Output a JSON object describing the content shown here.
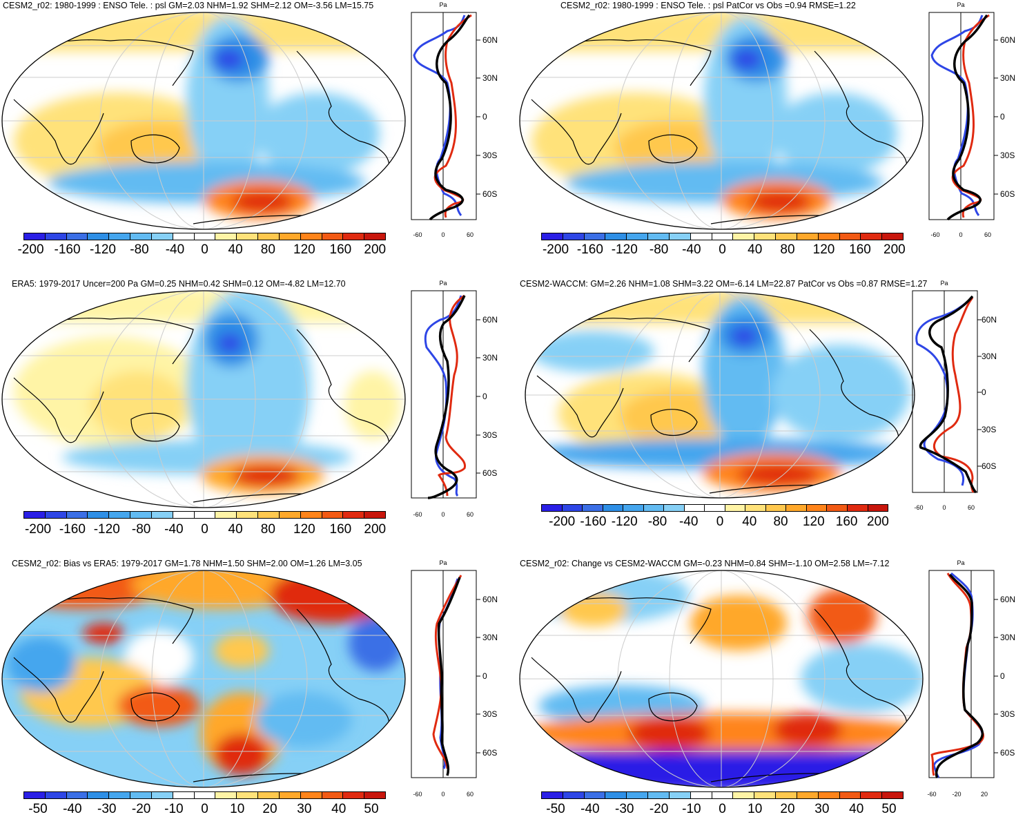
{
  "colors": [
    "#2a1fe6",
    "#2e46e6",
    "#3b6fe6",
    "#2e8fe6",
    "#45a6ee",
    "#62bbf2",
    "#86d0f6",
    "#ffffff",
    "#ffffff",
    "#fff4a6",
    "#ffe27a",
    "#ffc84e",
    "#ffa82a",
    "#ff841a",
    "#f25a14",
    "#e02a10",
    "#c8160c"
  ],
  "panels": [
    {
      "title": "CESM2_r02: 1980-1999 : ENSO Tele. : psl GM=2.03 NHM=1.92 SHM=2.12 OM=-3.56 LM=15.75",
      "cb_labels": [
        "-200",
        "-160",
        "-120",
        "-80",
        "-40",
        "0",
        "40",
        "80",
        "120",
        "160",
        "200"
      ],
      "unit": "Pa",
      "lat_labels": [
        "60N",
        "30N",
        "0",
        "30S",
        "60S"
      ],
      "x_ticks": [
        "-60",
        "0",
        "60"
      ]
    },
    {
      "title": "CESM2_r02: 1980-1999 : ENSO Tele. : psl PatCor vs Obs =0.94 RMSE=1.22",
      "cb_labels": [
        "-200",
        "-160",
        "-120",
        "-80",
        "-40",
        "0",
        "40",
        "80",
        "120",
        "160",
        "200"
      ],
      "unit": "Pa",
      "lat_labels": [
        "60N",
        "30N",
        "0",
        "30S",
        "60S"
      ],
      "x_ticks": [
        "-60",
        "0",
        "60"
      ]
    },
    {
      "title": "ERA5: 1979-2017 Uncer=200 Pa GM=0.25 NHM=0.42 SHM=0.12 OM=-4.82 LM=12.70",
      "cb_labels": [
        "-200",
        "-160",
        "-120",
        "-80",
        "-40",
        "0",
        "40",
        "80",
        "120",
        "160",
        "200"
      ],
      "unit": "Pa",
      "lat_labels": [
        "60N",
        "30N",
        "0",
        "30S",
        "60S"
      ],
      "x_ticks": [
        "-60",
        "0",
        "60"
      ]
    },
    {
      "title": "CESM2-WACCM: GM=2.26 NHM=1.08 SHM=3.22 OM=-6.14 LM=22.87 PatCor vs Obs =0.87 RMSE=1.27",
      "cb_labels": [
        "-200",
        "-160",
        "-120",
        "-80",
        "-40",
        "0",
        "40",
        "80",
        "120",
        "160",
        "200"
      ],
      "unit": "Pa",
      "lat_labels": [
        "60N",
        "30N",
        "0",
        "30S",
        "60S"
      ],
      "x_ticks": [
        "-60",
        "0",
        "60"
      ]
    },
    {
      "title": "CESM2_r02: Bias vs ERA5: 1979-2017 GM=1.78 NHM=1.50 SHM=2.00 OM=1.26 LM=3.05",
      "cb_labels": [
        "-50",
        "-40",
        "-30",
        "-20",
        "-10",
        "0",
        "10",
        "20",
        "30",
        "40",
        "50"
      ],
      "unit": "Pa",
      "lat_labels": [
        "60N",
        "30N",
        "0",
        "30S",
        "60S"
      ],
      "x_ticks": [
        "-60",
        "0",
        "60"
      ]
    },
    {
      "title": "CESM2_r02: Change vs CESM2-WACCM GM=-0.23 NHM=0.84 SHM=-1.10 OM=2.58 LM=-7.12",
      "cb_labels": [
        "-50",
        "-40",
        "-30",
        "-20",
        "-10",
        "0",
        "10",
        "20",
        "30",
        "40",
        "50"
      ],
      "unit": "Pa",
      "lat_labels": [
        "60N",
        "30N",
        "0",
        "30S",
        "60S"
      ],
      "x_ticks": [
        "-60",
        "-20",
        "20"
      ]
    }
  ]
}
